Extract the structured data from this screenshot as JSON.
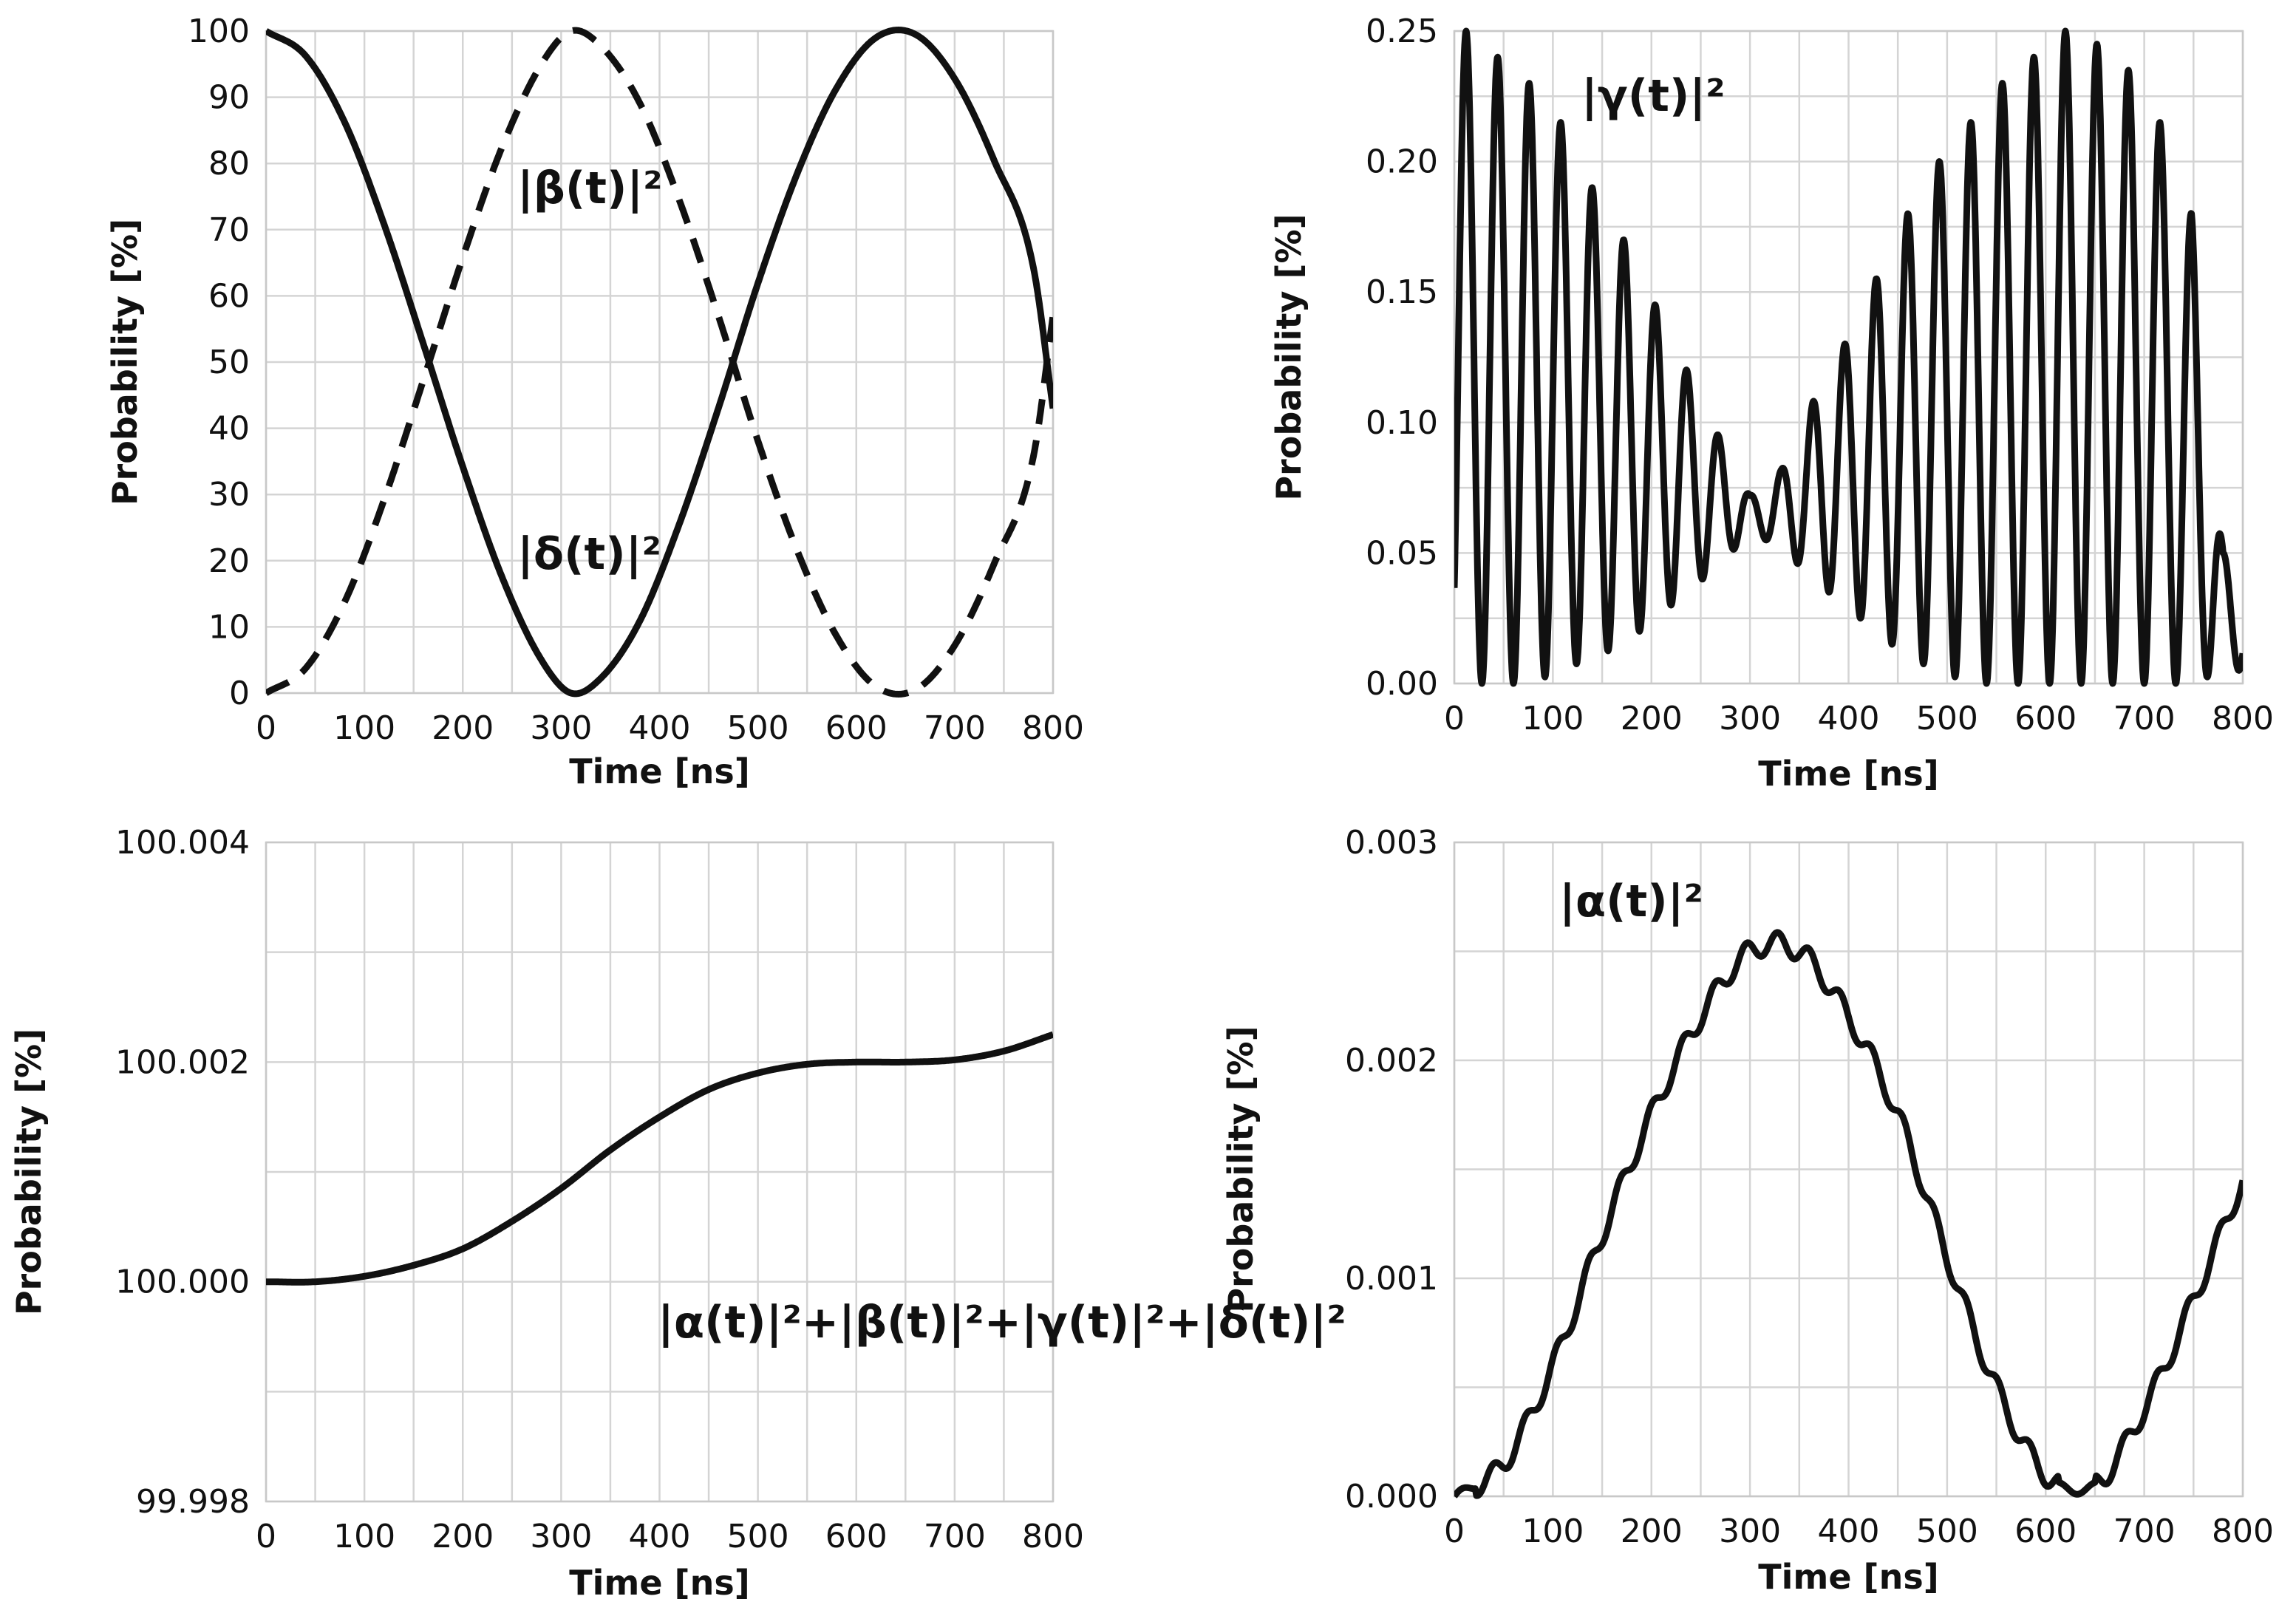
{
  "chart_data": [
    {
      "type": "line",
      "panel": "top-left",
      "title": "",
      "xlabel": "Time [ns]",
      "ylabel": "Probability [%]",
      "xlim": [
        0,
        800
      ],
      "ylim": [
        0,
        100
      ],
      "xticks": [
        "0",
        "100",
        "200",
        "300",
        "400",
        "500",
        "600",
        "700",
        "800"
      ],
      "yticks": [
        "0",
        "10",
        "20",
        "30",
        "40",
        "50",
        "60",
        "70",
        "80",
        "90",
        "100"
      ],
      "grid": true,
      "annotations": [
        "|β(t)|²",
        "|δ(t)|²"
      ],
      "series": [
        {
          "name": "|δ(t)|²",
          "style": "solid",
          "x": [
            0,
            40,
            80,
            120,
            160,
            200,
            240,
            280,
            310,
            340,
            380,
            420,
            460,
            500,
            540,
            580,
            620,
            660,
            700,
            740,
            780,
            800
          ],
          "values": [
            100,
            96.3,
            86.2,
            70.8,
            52.7,
            34.2,
            17.5,
            5.0,
            0,
            2.2,
            10.9,
            25.5,
            43.1,
            61.9,
            78.5,
            91.4,
            99.0,
            99.5,
            92.8,
            80.5,
            64.3,
            43
          ]
        },
        {
          "name": "|β(t)|²",
          "style": "dashed",
          "x": [
            0,
            40,
            80,
            120,
            160,
            200,
            240,
            280,
            310,
            340,
            380,
            420,
            460,
            500,
            540,
            580,
            620,
            660,
            700,
            740,
            780,
            800
          ],
          "values": [
            0,
            3.7,
            13.8,
            29.2,
            47.3,
            65.8,
            82.5,
            95.0,
            100,
            97.8,
            89.1,
            74.5,
            56.9,
            38.1,
            21.5,
            8.6,
            1.0,
            0.5,
            7.2,
            19.5,
            35.7,
            57
          ]
        }
      ]
    },
    {
      "type": "line",
      "panel": "top-right",
      "title": "",
      "xlabel": "Time [ns]",
      "ylabel": "Probability [%]",
      "xlim": [
        0,
        800
      ],
      "ylim": [
        0,
        0.25
      ],
      "xticks": [
        "0",
        "100",
        "200",
        "300",
        "400",
        "500",
        "600",
        "700",
        "800"
      ],
      "yticks": [
        "0.00",
        "0.05",
        "0.10",
        "0.15",
        "0.20",
        "0.25"
      ],
      "grid": true,
      "annotations": [
        "|γ(t)|²"
      ],
      "series": [
        {
          "name": "|γ(t)|²",
          "style": "solid",
          "oscillation_period_ns": 32,
          "peak_times": [
            12,
            44,
            76,
            108,
            140,
            172,
            204,
            236,
            268,
            300,
            332,
            364,
            396,
            428,
            460,
            492,
            524,
            556,
            588,
            620,
            652,
            684,
            716,
            748,
            780
          ],
          "peak_values": [
            0.25,
            0.24,
            0.23,
            0.215,
            0.19,
            0.17,
            0.145,
            0.12,
            0.095,
            0.072,
            0.082,
            0.108,
            0.13,
            0.155,
            0.18,
            0.2,
            0.215,
            0.23,
            0.24,
            0.25,
            0.245,
            0.235,
            0.215,
            0.18,
            0.05
          ],
          "trough_values": [
            0.0,
            0.0,
            0.0,
            0.005,
            0.01,
            0.015,
            0.025,
            0.035,
            0.045,
            0.058,
            0.052,
            0.04,
            0.03,
            0.02,
            0.01,
            0.005,
            0.0,
            0.0,
            0.0,
            0.0,
            0.0,
            0.0,
            0.0,
            0.0,
            0.005
          ]
        }
      ]
    },
    {
      "type": "line",
      "panel": "bottom-left",
      "title": "",
      "xlabel": "Time [ns]",
      "ylabel": "Probability [%]",
      "xlim": [
        0,
        800
      ],
      "ylim": [
        99.998,
        100.004
      ],
      "xticks": [
        "0",
        "100",
        "200",
        "300",
        "400",
        "500",
        "600",
        "700",
        "800"
      ],
      "yticks": [
        "99.998",
        "100.000",
        "100.002",
        "100.004"
      ],
      "grid": true,
      "annotations": [
        "|α(t)|²+|β(t)|²+|γ(t)|²+|δ(t)|²"
      ],
      "series": [
        {
          "name": "|α(t)|²+|β(t)|²+|γ(t)|²+|δ(t)|²",
          "style": "solid",
          "x": [
            0,
            50,
            100,
            150,
            200,
            250,
            300,
            350,
            400,
            450,
            500,
            550,
            600,
            650,
            700,
            750,
            800
          ],
          "values": [
            100.0,
            100.0,
            100.00005,
            100.00015,
            100.0003,
            100.00055,
            100.00085,
            100.0012,
            100.0015,
            100.00175,
            100.0019,
            100.00198,
            100.002,
            100.002,
            100.00202,
            100.0021,
            100.00225
          ]
        }
      ]
    },
    {
      "type": "line",
      "panel": "bottom-right",
      "title": "",
      "xlabel": "Time [ns]",
      "ylabel": "Probability [%]",
      "xlim": [
        0,
        800
      ],
      "ylim": [
        0,
        0.003
      ],
      "xticks": [
        "0",
        "100",
        "200",
        "300",
        "400",
        "500",
        "600",
        "700",
        "800"
      ],
      "yticks": [
        "0.000",
        "0.001",
        "0.002",
        "0.003"
      ],
      "grid": true,
      "annotations": [
        "|α(t)|²"
      ],
      "series": [
        {
          "name": "|α(t)|²",
          "style": "solid",
          "x": [
            0,
            50,
            100,
            150,
            200,
            250,
            300,
            350,
            400,
            450,
            500,
            550,
            600,
            650,
            700,
            750,
            800
          ],
          "values": [
            0.0,
            0.00015,
            0.0006,
            0.0012,
            0.00175,
            0.0022,
            0.0025,
            0.0025,
            0.0022,
            0.00175,
            0.0011,
            0.0005,
            0.0001,
            5e-05,
            0.0004,
            0.0009,
            0.00145
          ],
          "ripple_amplitude": 5e-05,
          "ripple_period_ns": 32
        }
      ]
    }
  ]
}
